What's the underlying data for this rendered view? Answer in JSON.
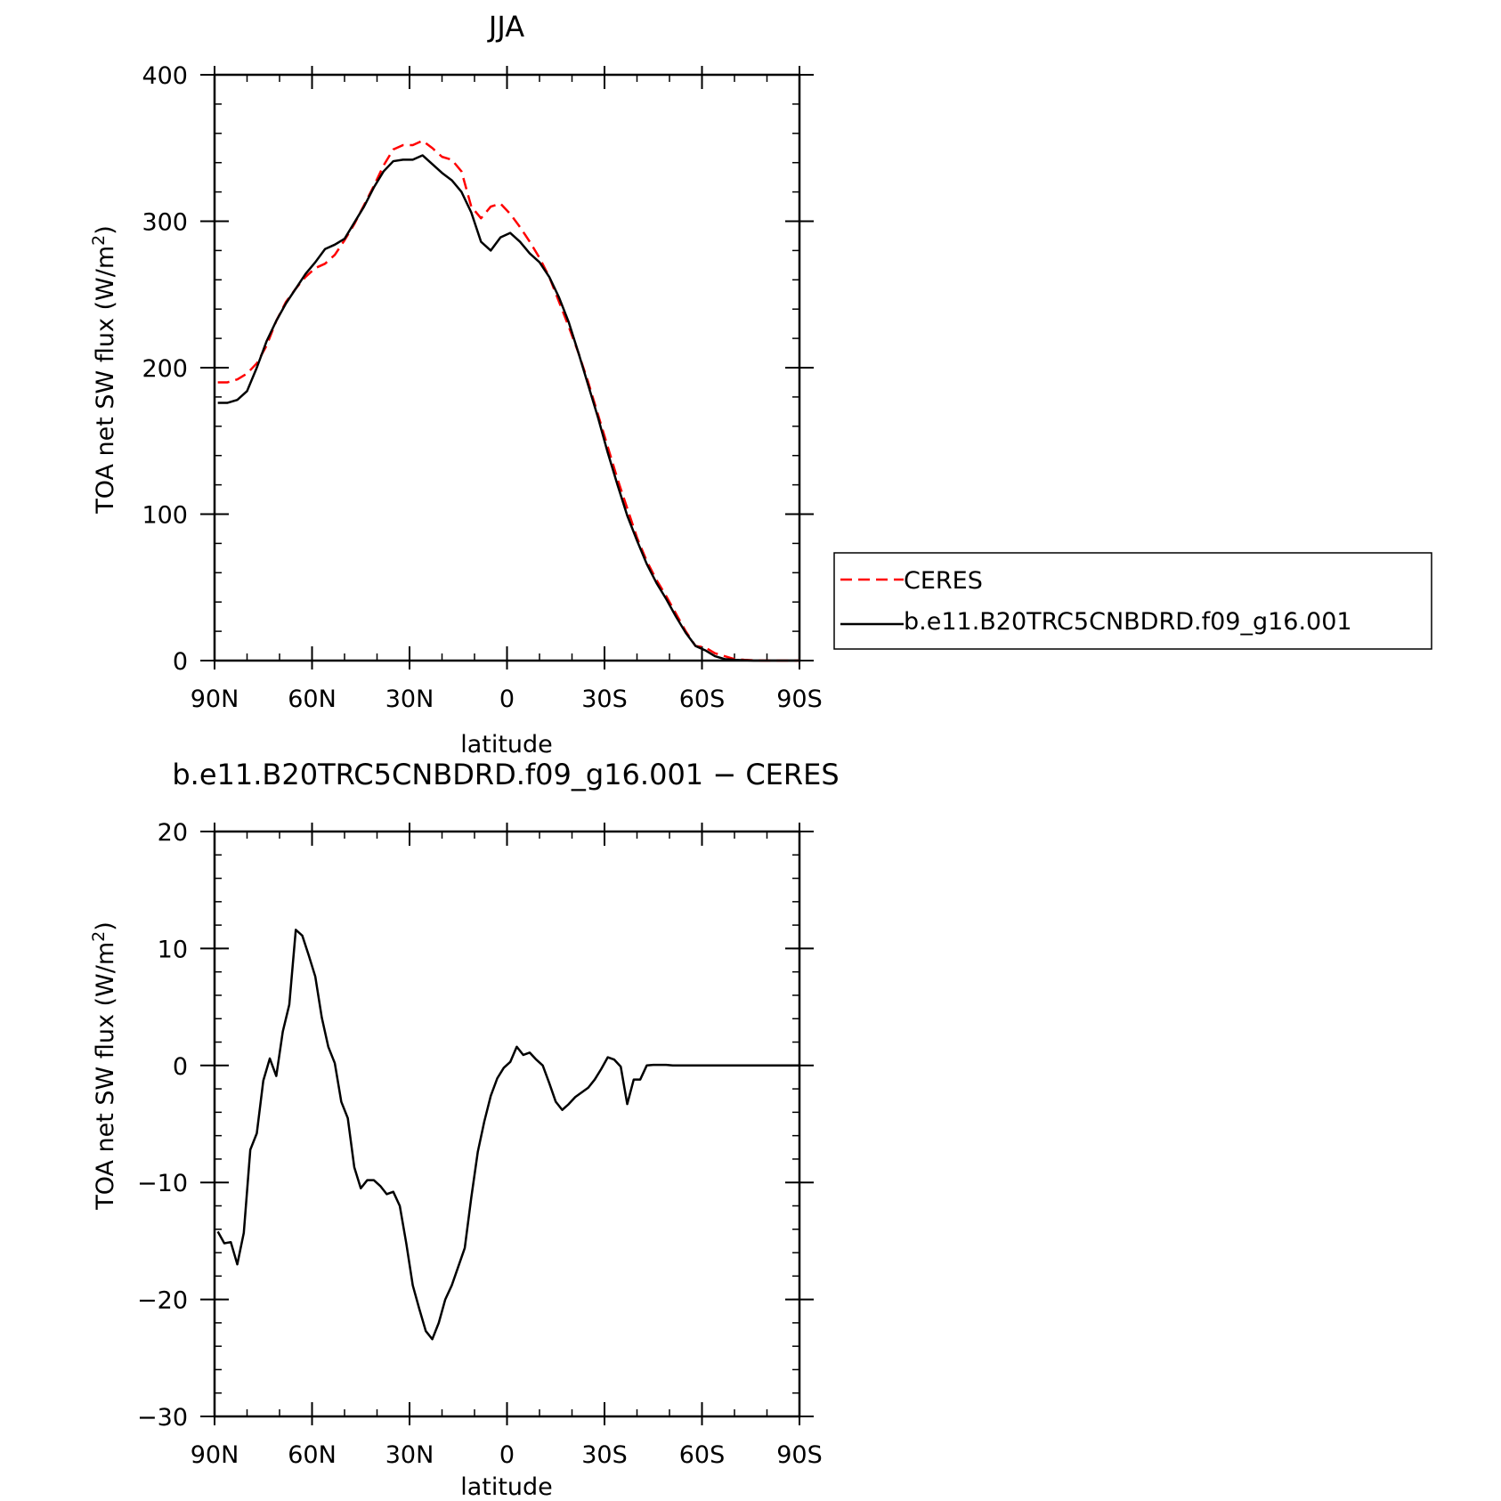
{
  "chart_data": [
    {
      "type": "line",
      "title": "JJA",
      "xlabel": "latitude",
      "ylabel": "TOA net SW flux (W/m²)",
      "ylabel_main": "TOA net SW flux (W/m",
      "ylabel_sup": "2",
      "ylabel_end": ")",
      "xlim": [
        90,
        -90
      ],
      "ylim": [
        0,
        400
      ],
      "xticks": [
        90,
        60,
        30,
        0,
        -30,
        -60,
        -90
      ],
      "xtick_labels": [
        "90N",
        "60N",
        "30N",
        "0",
        "30S",
        "60S",
        "90S"
      ],
      "yticks": [
        0,
        100,
        200,
        300,
        400
      ],
      "ytick_labels": [
        "0",
        "100",
        "200",
        "300",
        "400"
      ],
      "legend": "right",
      "series": [
        {
          "name": "CERES",
          "color": "#ff0000",
          "dash": true,
          "x": [
            89,
            86,
            83,
            80,
            77,
            74,
            71,
            68,
            65,
            62,
            59,
            56,
            53,
            50,
            47,
            44,
            41,
            38,
            35,
            32,
            29,
            26,
            23,
            20,
            17,
            14,
            11,
            8,
            5,
            2,
            -1,
            -4,
            -7,
            -10,
            -13,
            -16,
            -19,
            -22,
            -25,
            -28,
            -31,
            -34,
            -37,
            -40,
            -43,
            -46,
            -49,
            -52,
            -55,
            -58,
            -61,
            -64,
            -67,
            -70,
            -73,
            -76,
            -79,
            -82,
            -85,
            -88,
            -90
          ],
          "y": [
            190,
            190,
            192,
            196,
            203,
            215,
            232,
            245,
            254,
            262,
            268,
            271,
            277,
            287,
            298,
            311,
            324,
            338,
            349,
            352,
            352,
            355,
            350,
            344,
            342,
            334,
            310,
            302,
            310,
            312,
            305,
            296,
            286,
            275,
            262,
            245,
            228,
            210,
            190,
            168,
            146,
            124,
            104,
            84,
            68,
            55,
            44,
            32,
            20,
            10,
            9,
            5,
            3,
            1,
            0.5,
            0.2,
            0,
            0,
            0,
            0,
            0
          ]
        },
        {
          "name": "b.e11.B20TRC5CNBDRD.f09_g16.001",
          "color": "#000000",
          "dash": false,
          "x": [
            89,
            86,
            83,
            80,
            77,
            74,
            71,
            68,
            65,
            62,
            59,
            56,
            53,
            50,
            47,
            44,
            41,
            38,
            35,
            32,
            29,
            26,
            23,
            20,
            17,
            14,
            11,
            8,
            5,
            2,
            -1,
            -4,
            -7,
            -10,
            -13,
            -16,
            -19,
            -22,
            -25,
            -28,
            -31,
            -34,
            -37,
            -40,
            -43,
            -46,
            -49,
            -52,
            -55,
            -58,
            -61,
            -64,
            -67,
            -70,
            -73,
            -76,
            -79,
            -82,
            -85,
            -88,
            -90
          ],
          "y": [
            176,
            176,
            178,
            184,
            200,
            218,
            232,
            244,
            254,
            264,
            272,
            281,
            284,
            288,
            299,
            310,
            323,
            334,
            341,
            342,
            342,
            345,
            339,
            333,
            328,
            320,
            306,
            286,
            280,
            289,
            292,
            286,
            278,
            272,
            262,
            248,
            231,
            210,
            188,
            166,
            142,
            120,
            99,
            82,
            66,
            53,
            42,
            30,
            19,
            10,
            7,
            3,
            1,
            0.5,
            0.2,
            0,
            0,
            0,
            0,
            0,
            0
          ]
        }
      ]
    },
    {
      "type": "line",
      "title": "b.e11.B20TRC5CNBDRD.f09_g16.001 − CERES",
      "xlabel": "latitude",
      "ylabel": "TOA net SW flux (W/m²)",
      "ylabel_main": "TOA net SW flux (W/m",
      "ylabel_sup": "2",
      "ylabel_end": ")",
      "xlim": [
        90,
        -90
      ],
      "ylim": [
        -30,
        20
      ],
      "xticks": [
        90,
        60,
        30,
        0,
        -30,
        -60,
        -90
      ],
      "xtick_labels": [
        "90N",
        "60N",
        "30N",
        "0",
        "30S",
        "60S",
        "90S"
      ],
      "yticks": [
        -30,
        -20,
        -10,
        0,
        10,
        20
      ],
      "ytick_labels": [
        "−30",
        "−20",
        "−10",
        "0",
        "10",
        "20"
      ],
      "series": [
        {
          "color": "#000000",
          "dash": false,
          "x": [
            89,
            87,
            85,
            83,
            81,
            79,
            77,
            75,
            73,
            71,
            69,
            67,
            65,
            63,
            61,
            59,
            57,
            55,
            53,
            51,
            49,
            47,
            45,
            43,
            41,
            39,
            37,
            35,
            33,
            31,
            29,
            27,
            25,
            23,
            21,
            19,
            17,
            15,
            13,
            11,
            9,
            7,
            5,
            3,
            1,
            -1,
            -3,
            -5,
            -7,
            -9,
            -11,
            -13,
            -15,
            -17,
            -19,
            -21,
            -23,
            -25,
            -27,
            -29,
            -31,
            -33,
            -35,
            -37,
            -39,
            -41,
            -43,
            -45,
            -47,
            -49,
            -51,
            -53,
            -55,
            -57,
            -59,
            -61,
            -63,
            -65,
            -67,
            -69,
            -71,
            -73,
            -75,
            -77,
            -79,
            -81,
            -83,
            -85,
            -87,
            -89,
            -90
          ],
          "y": [
            -14.2,
            -15.2,
            -15.1,
            -17,
            -14.3,
            -7.2,
            -5.8,
            -1.3,
            0.6,
            -0.9,
            2.9,
            5.2,
            11.6,
            11.1,
            9.4,
            7.6,
            4.1,
            1.6,
            0.2,
            -3.1,
            -4.5,
            -8.7,
            -10.5,
            -9.8,
            -9.8,
            -10.3,
            -11,
            -10.8,
            -12,
            -15.2,
            -18.8,
            -20.8,
            -22.7,
            -23.4,
            -22,
            -20,
            -18.8,
            -17.2,
            -15.6,
            -11.3,
            -7.4,
            -4.8,
            -2.6,
            -1.1,
            -0.2,
            0.3,
            1.6,
            0.9,
            1.1,
            0.5,
            0,
            -1.5,
            -3.1,
            -3.8,
            -3.3,
            -2.7,
            -2.3,
            -1.9,
            -1.2,
            -0.3,
            0.7,
            0.5,
            -0.1,
            -3.3,
            -1.2,
            -1.2,
            0,
            0.05,
            0.05,
            0.05,
            0,
            0,
            0,
            0,
            0,
            0,
            0,
            0,
            0,
            0,
            0,
            0,
            0,
            0,
            0,
            0,
            0,
            0,
            0,
            0,
            0
          ]
        }
      ]
    }
  ]
}
